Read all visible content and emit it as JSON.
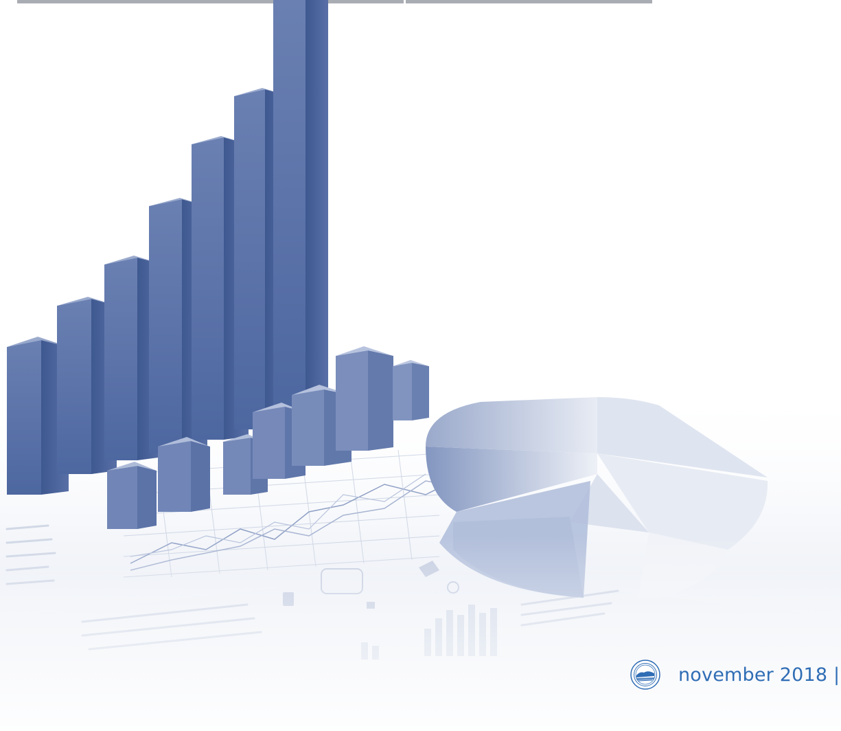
{
  "document": {
    "footer_text": "november 2018 |",
    "seal_icon": "state-seal-icon"
  },
  "colors": {
    "accent_blue": "#2f6db5",
    "bar_blue": "#5a74a8",
    "rule_gray": "#a9adb3"
  }
}
